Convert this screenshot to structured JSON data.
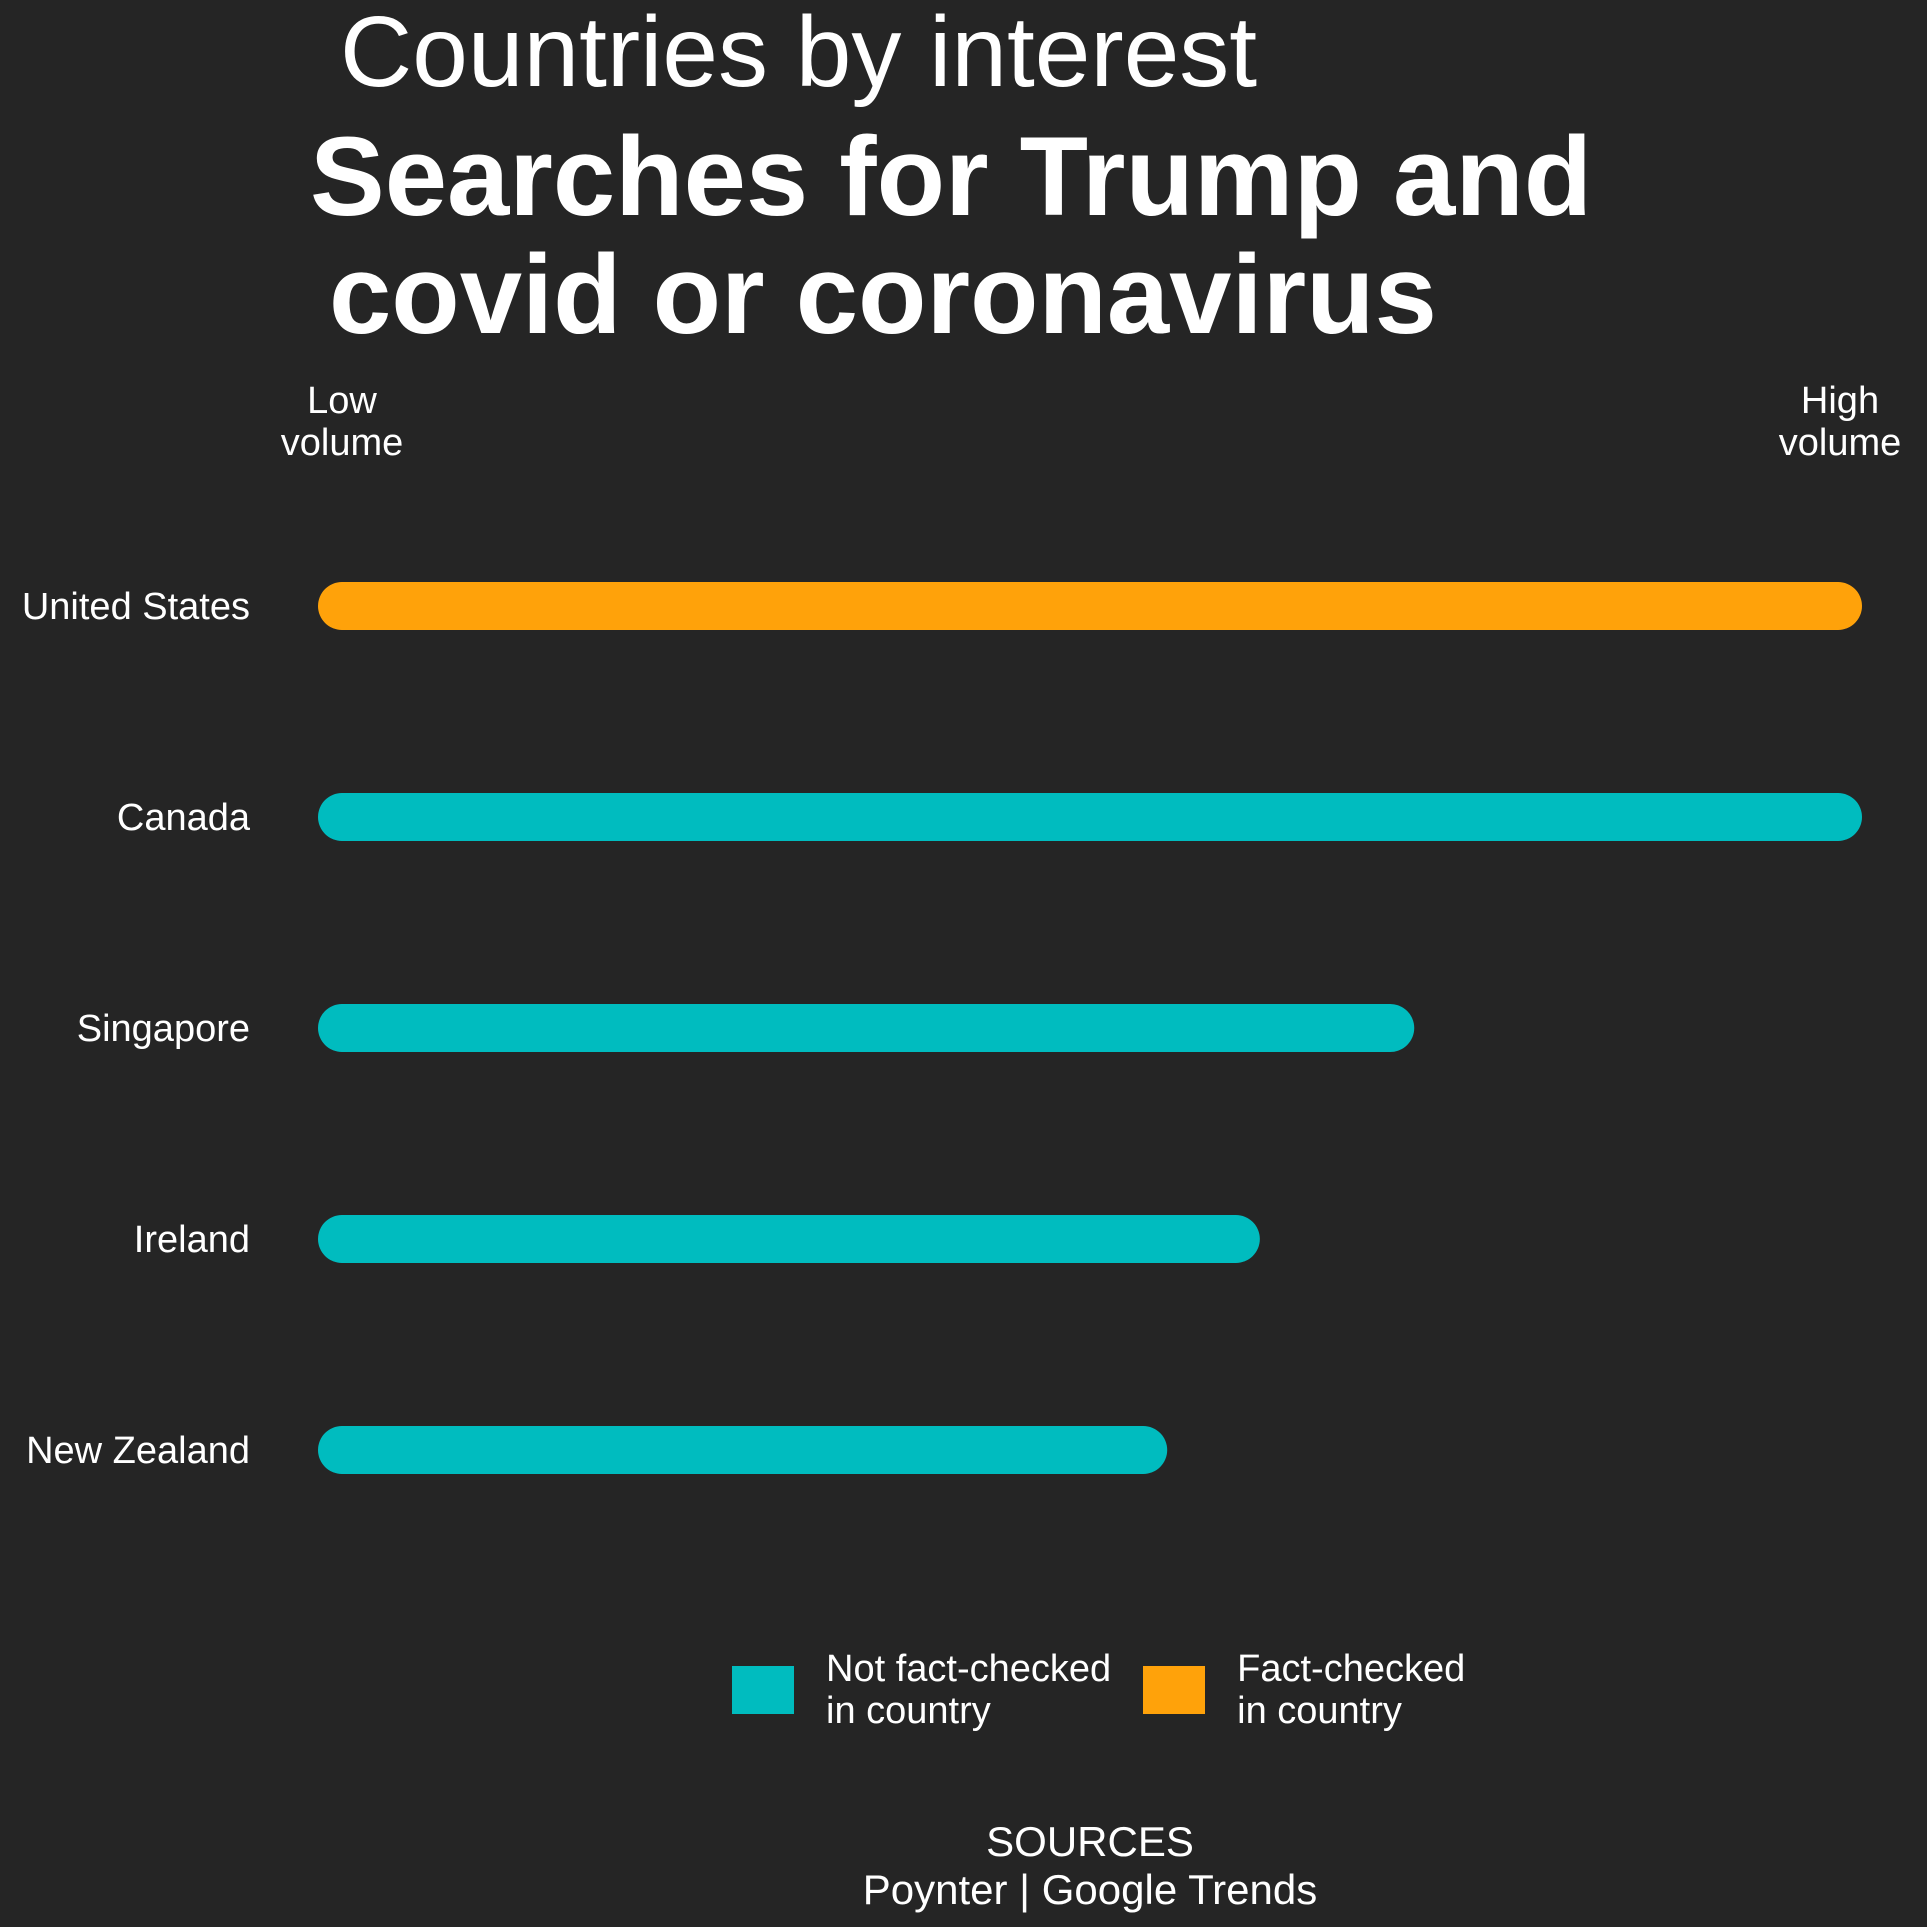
{
  "kicker": "Countries by interest",
  "title_lines": [
    "Searches for Trump and",
    "covid or coronavirus"
  ],
  "axis": {
    "low_label": "Low\nvolume",
    "high_label": "High\nvolume"
  },
  "legend": [
    {
      "label": "Not fact-checked\nin country",
      "color": "#00bcbf"
    },
    {
      "label": "Fact-checked\nin country",
      "color": "#ffa20a"
    }
  ],
  "sources": {
    "heading": "SOURCES",
    "text": "Poynter | Google Trends"
  },
  "chart_data": {
    "type": "bar",
    "orientation": "horizontal",
    "title": "Searches for Trump and covid or coronavirus",
    "subtitle": "Countries by interest",
    "categories": [
      "United States",
      "Canada",
      "Singapore",
      "Ireland",
      "New Zealand"
    ],
    "values": [
      100,
      100,
      71,
      61,
      55
    ],
    "fact_checked": [
      true,
      false,
      false,
      false,
      false
    ],
    "colors": {
      "fact_checked": "#ffa20a",
      "not_fact_checked": "#00bcbf"
    },
    "xlim": [
      0,
      100
    ],
    "xlabel": "",
    "ylabel": ""
  }
}
